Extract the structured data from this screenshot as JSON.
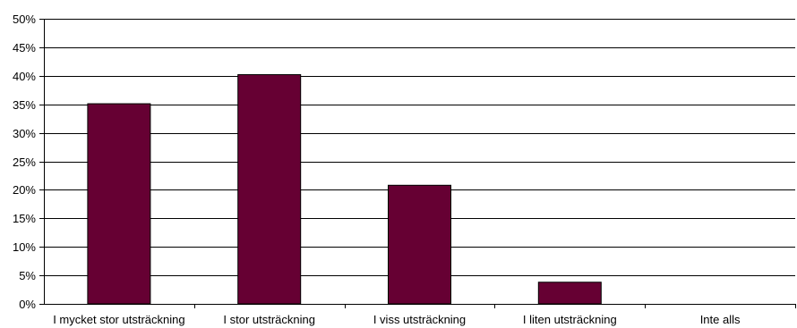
{
  "chart_data": {
    "type": "bar",
    "title": "",
    "xlabel": "",
    "ylabel": "",
    "categories": [
      "I mycket stor utsträckning",
      "I stor utsträckning",
      "I viss utsträckning",
      "I liten utsträckning",
      "Inte alls"
    ],
    "values": [
      35.1,
      40.2,
      20.8,
      3.8,
      0
    ],
    "ylim": [
      0,
      50
    ],
    "ytick_values": [
      0,
      5,
      10,
      15,
      20,
      25,
      30,
      35,
      40,
      45,
      50
    ],
    "ytick_labels": [
      "0%",
      "5%",
      "10%",
      "15%",
      "20%",
      "25%",
      "30%",
      "35%",
      "40%",
      "45%",
      "50%"
    ],
    "grid": true,
    "legend": "none",
    "bar_color": "#660033"
  }
}
